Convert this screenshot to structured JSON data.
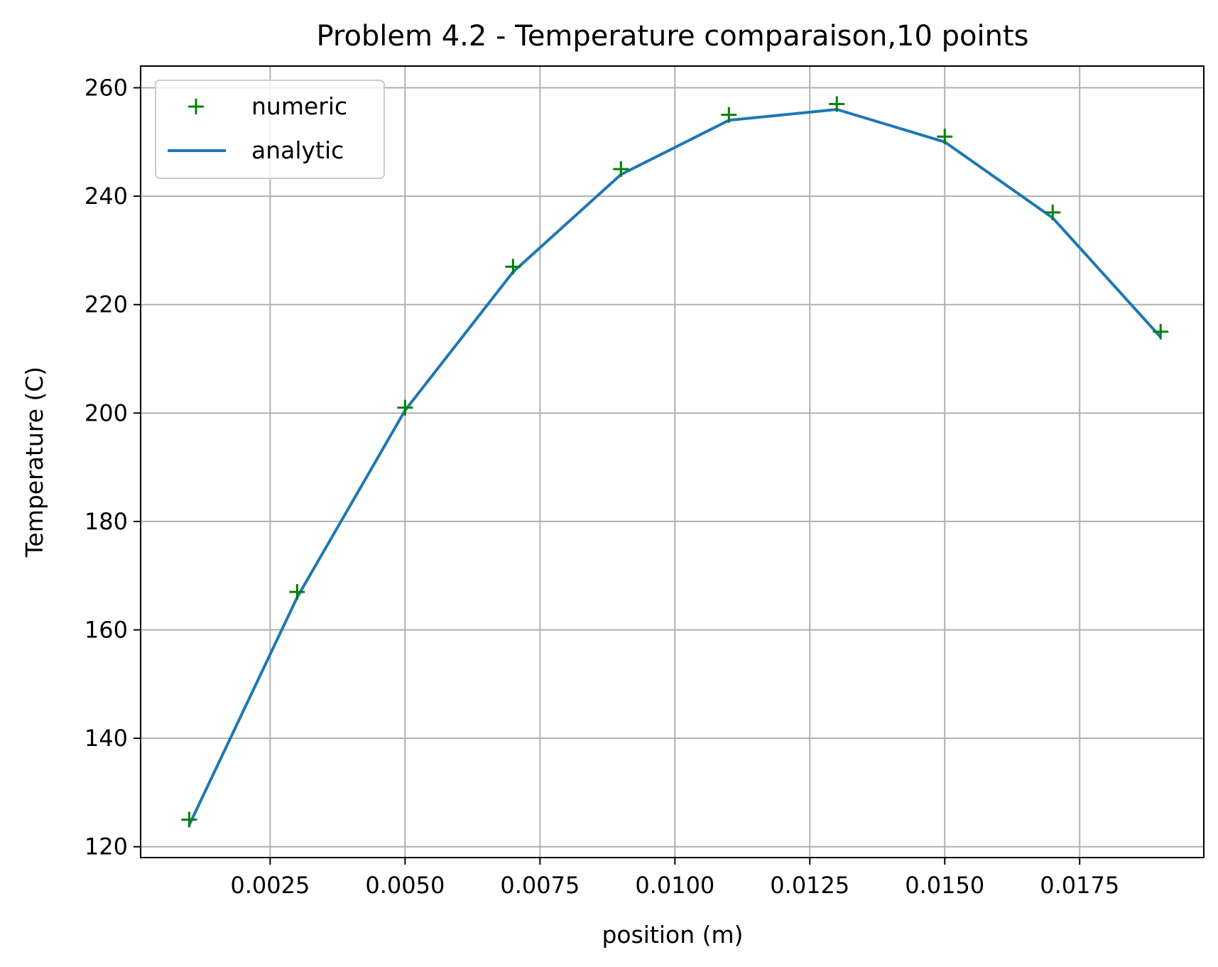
{
  "chart_data": {
    "type": "line",
    "title": "Problem 4.2 - Temperature comparaison,10 points",
    "xlabel": "position (m)",
    "ylabel": "Temperature (C)",
    "xlim": [
      0.0001,
      0.0198
    ],
    "ylim": [
      118,
      264
    ],
    "grid": true,
    "legend_position": "top-left",
    "x_ticks": [
      0.0025,
      0.005,
      0.0075,
      0.01,
      0.0125,
      0.015,
      0.0175
    ],
    "x_tick_labels": [
      "0.0025",
      "0.0050",
      "0.0075",
      "0.0100",
      "0.0125",
      "0.0150",
      "0.0175"
    ],
    "y_ticks": [
      120,
      140,
      160,
      180,
      200,
      220,
      240,
      260
    ],
    "y_tick_labels": [
      "120",
      "140",
      "160",
      "180",
      "200",
      "220",
      "240",
      "260"
    ],
    "series": [
      {
        "name": "numeric",
        "style": "markers",
        "marker": "+",
        "color": "#008000",
        "x": [
          0.001,
          0.003,
          0.005,
          0.007,
          0.009,
          0.011,
          0.013,
          0.015,
          0.017,
          0.019
        ],
        "y": [
          125,
          167,
          201,
          227,
          245,
          255,
          257,
          251,
          237,
          215
        ]
      },
      {
        "name": "analytic",
        "style": "line",
        "color": "#1f77b4",
        "x": [
          0.001,
          0.003,
          0.005,
          0.007,
          0.009,
          0.011,
          0.013,
          0.015,
          0.017,
          0.019
        ],
        "y": [
          124,
          166,
          200.5,
          226,
          244,
          254,
          256,
          250,
          236,
          214
        ]
      }
    ]
  }
}
